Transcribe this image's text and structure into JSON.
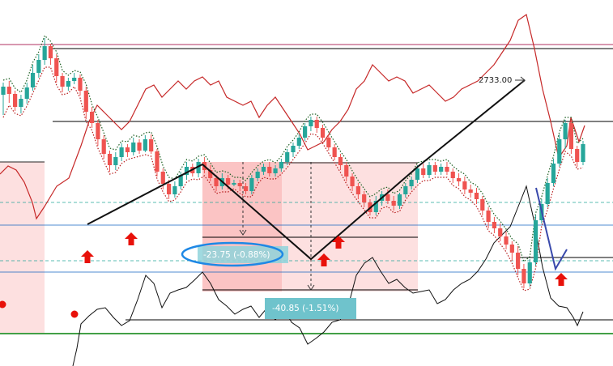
{
  "chart_data": {
    "type": "candlestick",
    "title": "",
    "xlabel": "",
    "ylabel": "",
    "annotations": {
      "price_label": "2733.00",
      "measure_1": "-23.75 (-0.88%)",
      "measure_2": "-40.85 (-1.51%)"
    },
    "colors": {
      "bull": "#26a69a",
      "bear": "#ef5350",
      "indicator_red": "#c62828",
      "zone_fill": "#fde0e0",
      "zone_strong": "#fbc4c4",
      "measure_box": "#6fc3cc",
      "highlight_ellipse": "#1e88e5",
      "arrow_red": "#e8110a",
      "baseline_green": "#43a047",
      "trend_blue": "#3949ab"
    },
    "candles": [
      [
        335,
        345,
        310,
        350
      ],
      [
        345,
        336,
        325,
        352
      ],
      [
        336,
        320,
        315,
        340
      ],
      [
        320,
        330,
        312,
        335
      ],
      [
        330,
        344,
        324,
        350
      ],
      [
        344,
        362,
        340,
        372
      ],
      [
        362,
        378,
        356,
        385
      ],
      [
        378,
        395,
        372,
        405
      ],
      [
        395,
        380,
        372,
        398
      ],
      [
        380,
        358,
        350,
        385
      ],
      [
        358,
        345,
        338,
        362
      ],
      [
        345,
        352,
        340,
        356
      ],
      [
        352,
        356,
        348,
        362
      ],
      [
        356,
        340,
        334,
        360
      ],
      [
        340,
        314,
        305,
        345
      ],
      [
        314,
        300,
        294,
        320
      ],
      [
        300,
        280,
        272,
        304
      ],
      [
        280,
        262,
        256,
        285
      ],
      [
        262,
        248,
        240,
        266
      ],
      [
        248,
        258,
        242,
        264
      ],
      [
        258,
        270,
        253,
        275
      ],
      [
        270,
        264,
        258,
        274
      ],
      [
        264,
        276,
        260,
        282
      ],
      [
        276,
        266,
        262,
        280
      ],
      [
        266,
        280,
        264,
        285
      ],
      [
        280,
        265,
        262,
        286
      ],
      [
        265,
        240,
        234,
        268
      ],
      [
        240,
        225,
        218,
        244
      ],
      [
        225,
        212,
        206,
        230
      ],
      [
        212,
        222,
        208,
        228
      ],
      [
        222,
        236,
        218,
        240
      ],
      [
        236,
        246,
        230,
        252
      ],
      [
        246,
        238,
        234,
        250
      ],
      [
        238,
        252,
        233,
        256
      ],
      [
        252,
        242,
        238,
        258
      ],
      [
        242,
        232,
        228,
        248
      ],
      [
        232,
        222,
        216,
        236
      ],
      [
        222,
        232,
        218,
        238
      ],
      [
        232,
        224,
        218,
        236
      ],
      [
        224,
        226,
        222,
        230
      ],
      [
        226,
        222,
        216,
        230
      ],
      [
        222,
        216,
        212,
        226
      ],
      [
        216,
        232,
        212,
        236
      ],
      [
        232,
        240,
        228,
        244
      ],
      [
        240,
        246,
        236,
        250
      ],
      [
        246,
        238,
        234,
        252
      ],
      [
        238,
        244,
        234,
        248
      ],
      [
        244,
        252,
        240,
        256
      ],
      [
        252,
        264,
        248,
        268
      ],
      [
        264,
        272,
        258,
        276
      ],
      [
        272,
        282,
        268,
        286
      ],
      [
        282,
        296,
        278,
        300
      ],
      [
        296,
        304,
        290,
        308
      ],
      [
        304,
        294,
        288,
        308
      ],
      [
        294,
        282,
        278,
        298
      ],
      [
        282,
        270,
        266,
        286
      ],
      [
        270,
        258,
        254,
        274
      ],
      [
        258,
        248,
        242,
        262
      ],
      [
        248,
        234,
        228,
        252
      ],
      [
        234,
        222,
        216,
        238
      ],
      [
        222,
        212,
        206,
        226
      ],
      [
        212,
        202,
        196,
        216
      ],
      [
        202,
        190,
        186,
        206
      ],
      [
        190,
        204,
        186,
        210
      ],
      [
        204,
        212,
        198,
        216
      ],
      [
        212,
        204,
        200,
        218
      ],
      [
        204,
        198,
        192,
        210
      ],
      [
        198,
        212,
        194,
        214
      ],
      [
        212,
        222,
        208,
        226
      ],
      [
        222,
        230,
        218,
        234
      ],
      [
        230,
        244,
        226,
        248
      ],
      [
        244,
        236,
        232,
        250
      ],
      [
        236,
        248,
        232,
        252
      ],
      [
        248,
        240,
        236,
        252
      ],
      [
        240,
        246,
        236,
        250
      ],
      [
        246,
        240,
        236,
        252
      ],
      [
        240,
        232,
        226,
        244
      ],
      [
        232,
        228,
        222,
        238
      ],
      [
        228,
        218,
        212,
        234
      ],
      [
        218,
        214,
        208,
        224
      ],
      [
        214,
        206,
        200,
        220
      ],
      [
        206,
        192,
        186,
        210
      ],
      [
        192,
        178,
        170,
        196
      ],
      [
        178,
        170,
        164,
        184
      ],
      [
        170,
        160,
        154,
        176
      ],
      [
        160,
        150,
        144,
        166
      ],
      [
        150,
        140,
        130,
        154
      ],
      [
        140,
        120,
        112,
        148
      ],
      [
        120,
        102,
        96,
        126
      ],
      [
        102,
        128,
        98,
        132
      ],
      [
        128,
        180,
        124,
        186
      ],
      [
        180,
        200,
        176,
        206
      ],
      [
        200,
        226,
        196,
        232
      ],
      [
        226,
        250,
        222,
        256
      ],
      [
        250,
        280,
        246,
        286
      ],
      [
        280,
        300,
        268,
        304
      ],
      [
        300,
        268,
        262,
        304
      ],
      [
        268,
        252,
        246,
        272
      ],
      [
        252,
        274,
        248,
        278
      ]
    ]
  }
}
